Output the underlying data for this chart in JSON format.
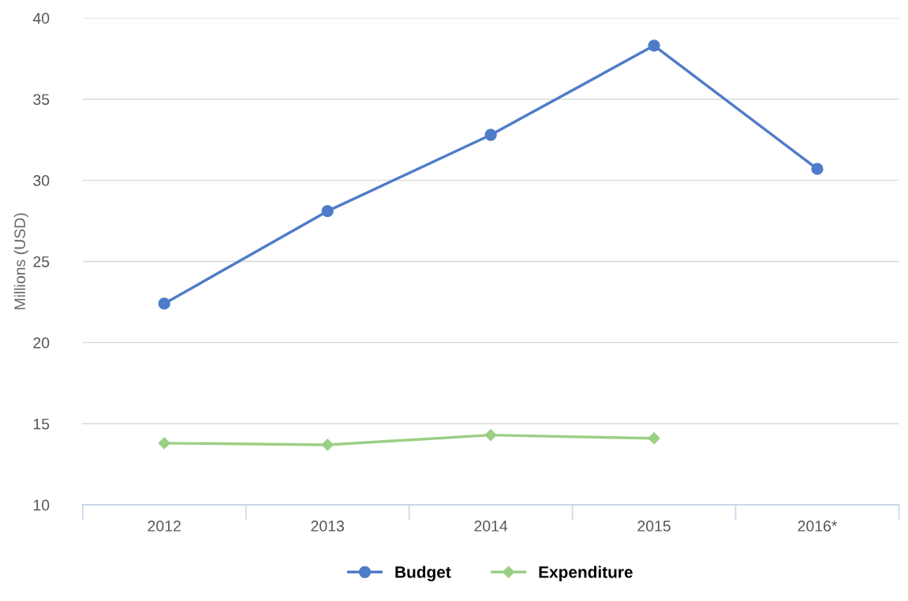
{
  "chart_data": {
    "type": "line",
    "ylabel": "Millions (USD)",
    "categories": [
      "2012",
      "2013",
      "2014",
      "2015",
      "2016*"
    ],
    "series": [
      {
        "name": "Budget",
        "color": "#4f7cc9",
        "marker": "circle",
        "values": [
          22.4,
          28.1,
          32.8,
          38.3,
          30.7
        ]
      },
      {
        "name": "Expenditure",
        "color": "#9bcf84",
        "marker": "diamond",
        "values": [
          13.8,
          13.7,
          14.3,
          14.1,
          null
        ]
      }
    ],
    "ylim": [
      10,
      40
    ],
    "yticks": [
      10,
      15,
      20,
      25,
      30,
      35,
      40
    ],
    "grid": "y",
    "legend": "bottom",
    "line_style": "solid"
  }
}
